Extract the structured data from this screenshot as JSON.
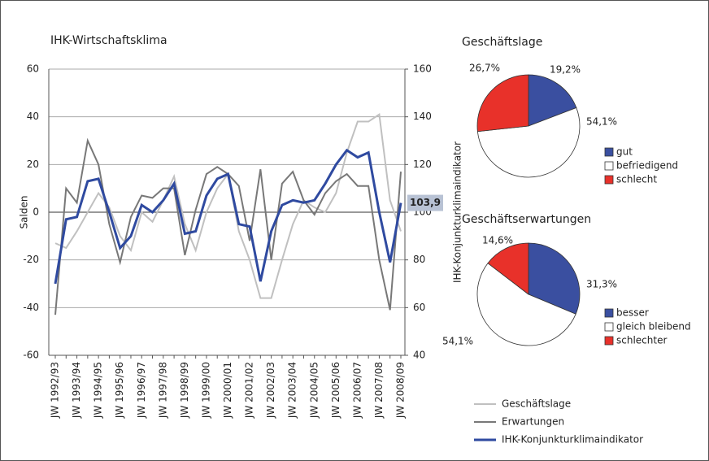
{
  "chart_data": [
    {
      "type": "line",
      "title": "IHK-Wirtschaftsklima",
      "ylabel": "Salden",
      "y2label": "IHK-Konjunkturklimaindikator",
      "categories": [
        "JW 1992/93",
        null,
        "JW 1993/94",
        null,
        "JW 1994/95",
        null,
        "JW 1995/96",
        null,
        "JW 1996/97",
        null,
        "JW 1997/98",
        null,
        "JW 1998/99",
        null,
        "JW 1999/00",
        null,
        "JW 2000/01",
        null,
        "JW 2001/02",
        null,
        "JW 2002/03",
        null,
        "JW 2003/04",
        null,
        "JW 2004/05",
        null,
        "JW 2005/06",
        null,
        "JW 2006/07",
        null,
        "JW 2007/08",
        null,
        "JW 2008/09"
      ],
      "ylim": [
        -60,
        60
      ],
      "yticks": [
        -60,
        -40,
        -20,
        0,
        20,
        40,
        60
      ],
      "y2lim": [
        40,
        160
      ],
      "y2ticks": [
        40,
        60,
        80,
        100,
        120,
        140,
        160
      ],
      "grid": true,
      "series": [
        {
          "name": "Geschäftslage",
          "color": "#c0c0c0",
          "values": [
            -13,
            -15,
            -8,
            0,
            8,
            2,
            -10,
            -16,
            0,
            -4,
            5,
            15,
            -5,
            -16,
            0,
            10,
            16,
            -8,
            -20,
            -36,
            -36,
            -20,
            -5,
            5,
            2,
            0,
            8,
            25,
            38,
            38,
            41,
            5,
            -8
          ]
        },
        {
          "name": "Erwartungen",
          "color": "#787878",
          "values": [
            -43,
            10,
            4,
            30,
            20,
            -5,
            -21,
            -2,
            7,
            6,
            10,
            10,
            -18,
            1,
            16,
            19,
            16,
            11,
            -12,
            18,
            -20,
            12,
            17,
            5,
            -1,
            8,
            13,
            16,
            11,
            11,
            -20,
            -41,
            17
          ]
        },
        {
          "name": "IHK-Konjunkturklimaindikator",
          "color": "#2f4aa0",
          "axis": "y2",
          "values": [
            70,
            97,
            98,
            113,
            114,
            100,
            85,
            90,
            103,
            100,
            105,
            112,
            91,
            92,
            107,
            114,
            116,
            95,
            94,
            71,
            92,
            103,
            105,
            104,
            105,
            112,
            120,
            126,
            123,
            125,
            100,
            79,
            103.9
          ],
          "value_labels": [
            null,
            null,
            null,
            null,
            null,
            null,
            null,
            null,
            null,
            null,
            null,
            null,
            null,
            null,
            null,
            null,
            null,
            null,
            null,
            null,
            null,
            null,
            null,
            null,
            null,
            null,
            null,
            null,
            null,
            null,
            null,
            null,
            "103,9"
          ]
        }
      ]
    },
    {
      "type": "pie",
      "title": "Geschäftslage",
      "categories": [
        "gut",
        "befriedigend",
        "schlecht"
      ],
      "values": [
        19.2,
        54.1,
        26.7
      ],
      "value_labels": [
        "19,2%",
        "54,1%",
        "26,7%"
      ],
      "colors": [
        "#3a4fa0",
        "#ffffff",
        "#e8312a"
      ]
    },
    {
      "type": "pie",
      "title": "Geschäftserwartungen",
      "categories": [
        "besser",
        "gleich bleibend",
        "schlechter"
      ],
      "values": [
        31.3,
        54.1,
        14.6
      ],
      "value_labels": [
        "31,3%",
        "54,1%",
        "14,6%"
      ],
      "colors": [
        "#3a4fa0",
        "#ffffff",
        "#e8312a"
      ]
    }
  ]
}
